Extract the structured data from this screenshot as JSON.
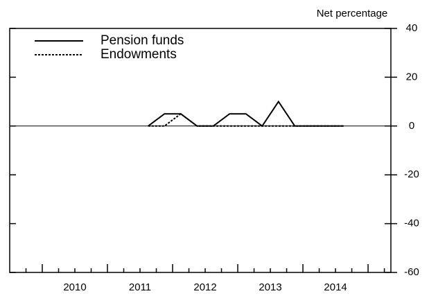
{
  "chart_data": {
    "type": "line",
    "y_axis_label": "Net percentage",
    "x": [
      2011.625,
      2011.875,
      2012.125,
      2012.375,
      2012.625,
      2012.875,
      2013.125,
      2013.375,
      2013.625,
      2013.875,
      2014.125,
      2014.375,
      2014.625
    ],
    "series": [
      {
        "name": "Pension funds",
        "color": "#000000",
        "dash": "solid",
        "values": [
          0,
          5,
          5,
          0,
          0,
          5,
          5,
          0,
          10,
          0,
          0,
          0,
          0
        ]
      },
      {
        "name": "Endowments",
        "color": "#000000",
        "dash": "dotted",
        "values": [
          0,
          0,
          5,
          0,
          0,
          0,
          0,
          0,
          0,
          0,
          0,
          0,
          0
        ]
      }
    ],
    "xlim": [
      2009.5,
      2015.35
    ],
    "xticks": [
      2010,
      2011,
      2012,
      2013,
      2014,
      2015
    ],
    "xticks_minor": [
      2009.75,
      2010.25,
      2010.5,
      2010.75,
      2011.25,
      2011.5,
      2011.75,
      2012.25,
      2012.5,
      2012.75,
      2013.25,
      2013.5,
      2013.75,
      2014.25,
      2014.5,
      2014.75,
      2015.25
    ],
    "x_labels": [
      {
        "value": 2010.5,
        "label": "2010"
      },
      {
        "value": 2011.5,
        "label": "2011"
      },
      {
        "value": 2012.5,
        "label": "2012"
      },
      {
        "value": 2013.5,
        "label": "2013"
      },
      {
        "value": 2014.5,
        "label": "2014"
      }
    ],
    "ylim": [
      -60,
      40
    ],
    "yticks": [
      -60,
      -40,
      -20,
      0,
      20,
      40
    ],
    "zero_line": true,
    "legend": "upper left"
  }
}
